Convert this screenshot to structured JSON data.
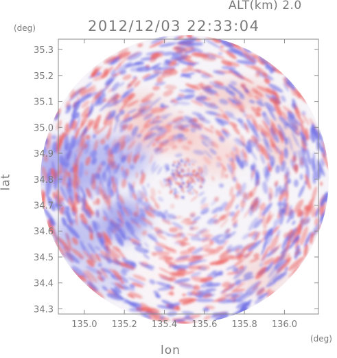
{
  "header": {
    "alt_label": "ALT(km) 2.0",
    "timestamp": "2012/12/03 22:33:04"
  },
  "axes": {
    "x_unit": "(deg)",
    "y_unit": "(deg)",
    "x_title": "lon",
    "y_title": "lat",
    "x_ticks": [
      "135.0",
      "135.2",
      "135.4",
      "135.6",
      "135.8",
      "136.0"
    ],
    "y_ticks": [
      "35.3",
      "35.2",
      "35.1",
      "35.0",
      "34.9",
      "34.8",
      "34.7",
      "34.6",
      "34.5",
      "34.4",
      "34.3"
    ]
  },
  "chart_data": {
    "type": "heatmap",
    "title": "2012/12/03 22:33:04",
    "xlabel": "lon",
    "ylabel": "lat",
    "x_ticks": [
      135.0,
      135.2,
      135.4,
      135.6,
      135.8,
      136.0
    ],
    "y_ticks": [
      35.3,
      35.2,
      35.1,
      35.0,
      34.9,
      34.8,
      34.7,
      34.6,
      34.5,
      34.4,
      34.3
    ],
    "xlim": [
      134.87,
      136.17
    ],
    "ylim": [
      34.28,
      35.34
    ],
    "center": {
      "lon": 135.52,
      "lat": 34.82
    },
    "colors": {
      "positive": "#f08080",
      "negative": "#8080f0",
      "neutral": "#ffffff",
      "frame": "#8a8a8a"
    }
  }
}
